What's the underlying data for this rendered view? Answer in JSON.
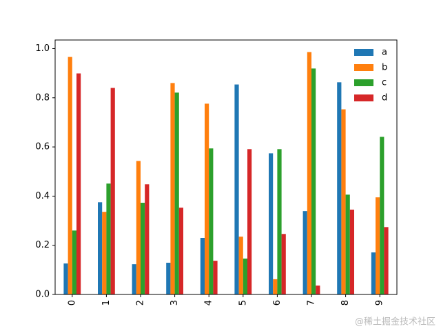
{
  "chart_data": {
    "type": "bar",
    "categories": [
      "0",
      "1",
      "2",
      "3",
      "4",
      "5",
      "6",
      "7",
      "8",
      "9"
    ],
    "series": [
      {
        "name": "a",
        "color": "#1f77b4",
        "values": [
          0.126,
          0.375,
          0.123,
          0.129,
          0.23,
          0.854,
          0.574,
          0.339,
          0.863,
          0.171
        ]
      },
      {
        "name": "b",
        "color": "#ff7f0e",
        "values": [
          0.966,
          0.336,
          0.543,
          0.86,
          0.776,
          0.235,
          0.062,
          0.986,
          0.753,
          0.395
        ]
      },
      {
        "name": "c",
        "color": "#2ca02c",
        "values": [
          0.26,
          0.451,
          0.373,
          0.821,
          0.594,
          0.146,
          0.591,
          0.919,
          0.406,
          0.641
        ]
      },
      {
        "name": "d",
        "color": "#d62728",
        "values": [
          0.899,
          0.84,
          0.448,
          0.353,
          0.137,
          0.591,
          0.246,
          0.036,
          0.345,
          0.274
        ]
      }
    ],
    "ylim": [
      0,
      1.035
    ],
    "yticks": [
      {
        "value": 0,
        "label": "0.0"
      },
      {
        "value": 0.2,
        "label": "0.2"
      },
      {
        "value": 0.4,
        "label": "0.4"
      },
      {
        "value": 0.6,
        "label": "0.6"
      },
      {
        "value": 0.8,
        "label": "0.8"
      },
      {
        "value": 1,
        "label": "1.0"
      }
    ],
    "legend": "upper right",
    "watermark": "@稀土掘金技术社区"
  }
}
